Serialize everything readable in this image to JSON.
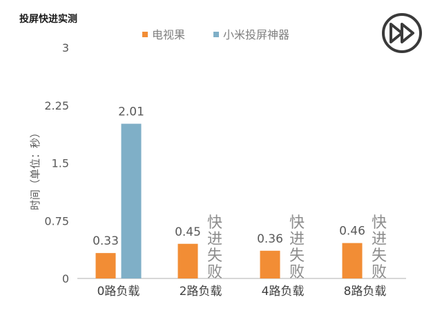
{
  "page": {
    "title": "投屏快进实测",
    "play_icon": "fast-forward-icon"
  },
  "colors": {
    "series_a": "#F28D35",
    "series_b": "#7FAFC7",
    "axis": "#bfbfbf",
    "icon": "#3a3a3a"
  },
  "chart_data": {
    "type": "bar",
    "title": "",
    "xlabel": "",
    "ylabel": "时间（单位：秒）",
    "ylim": [
      0,
      3
    ],
    "yticks": [
      "0",
      "0.75",
      "1.5",
      "2.25",
      "3"
    ],
    "grid": false,
    "legend_position": "top-center",
    "categories": [
      "0路负载",
      "2路负载",
      "4路负载",
      "8路负载"
    ],
    "series": [
      {
        "name": "电视果",
        "color": "#F28D35",
        "values": [
          0.33,
          0.45,
          0.36,
          0.46
        ],
        "labels": [
          "0.33",
          "0.45",
          "0.36",
          "0.46"
        ]
      },
      {
        "name": "小米投屏神器",
        "color": "#7FAFC7",
        "values": [
          2.01,
          null,
          null,
          null
        ],
        "labels": [
          "2.01",
          null,
          null,
          null
        ]
      }
    ],
    "annotations": [
      {
        "category": "2路负载",
        "text": "快进失败"
      },
      {
        "category": "4路负载",
        "text": "快进失败"
      },
      {
        "category": "8路负载",
        "text": "快进失败"
      }
    ]
  }
}
